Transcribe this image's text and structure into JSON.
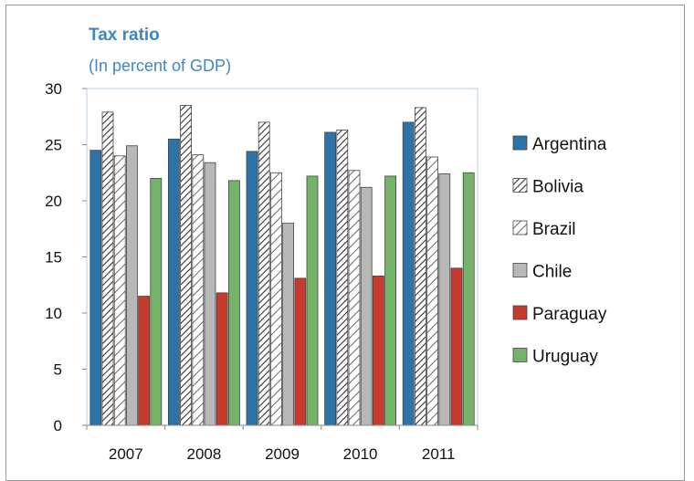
{
  "chart_data": {
    "type": "bar",
    "title": "Tax ratio",
    "subtitle": "(In percent of GDP)",
    "xlabel": "",
    "ylabel": "",
    "categories": [
      "2007",
      "2008",
      "2009",
      "2010",
      "2011"
    ],
    "ylim": [
      0,
      30
    ],
    "yticks": [
      0,
      5,
      10,
      15,
      20,
      25,
      30
    ],
    "grid": false,
    "legend_position": "right",
    "series": [
      {
        "name": "Argentina",
        "values": [
          24.5,
          25.5,
          24.4,
          26.1,
          27.0
        ],
        "color": "#2d73a8",
        "pattern": "solid"
      },
      {
        "name": "Bolivia",
        "values": [
          27.9,
          28.5,
          27.0,
          26.3,
          28.3
        ],
        "color": "#ffffff",
        "pattern": "diagonal-dense"
      },
      {
        "name": "Brazil",
        "values": [
          24.0,
          24.1,
          22.5,
          22.7,
          23.9
        ],
        "color": "#ffffff",
        "pattern": "diagonal-sparse"
      },
      {
        "name": "Chile",
        "values": [
          24.9,
          23.4,
          18.0,
          21.2,
          22.4
        ],
        "color": "#b8b8b8",
        "pattern": "solid"
      },
      {
        "name": "Paraguay",
        "values": [
          11.5,
          11.8,
          13.1,
          13.3,
          14.0
        ],
        "color": "#c73a2e",
        "pattern": "solid"
      },
      {
        "name": "Uruguay",
        "values": [
          22.0,
          21.8,
          22.2,
          22.2,
          22.5
        ],
        "color": "#76b36a",
        "pattern": "solid"
      }
    ]
  }
}
